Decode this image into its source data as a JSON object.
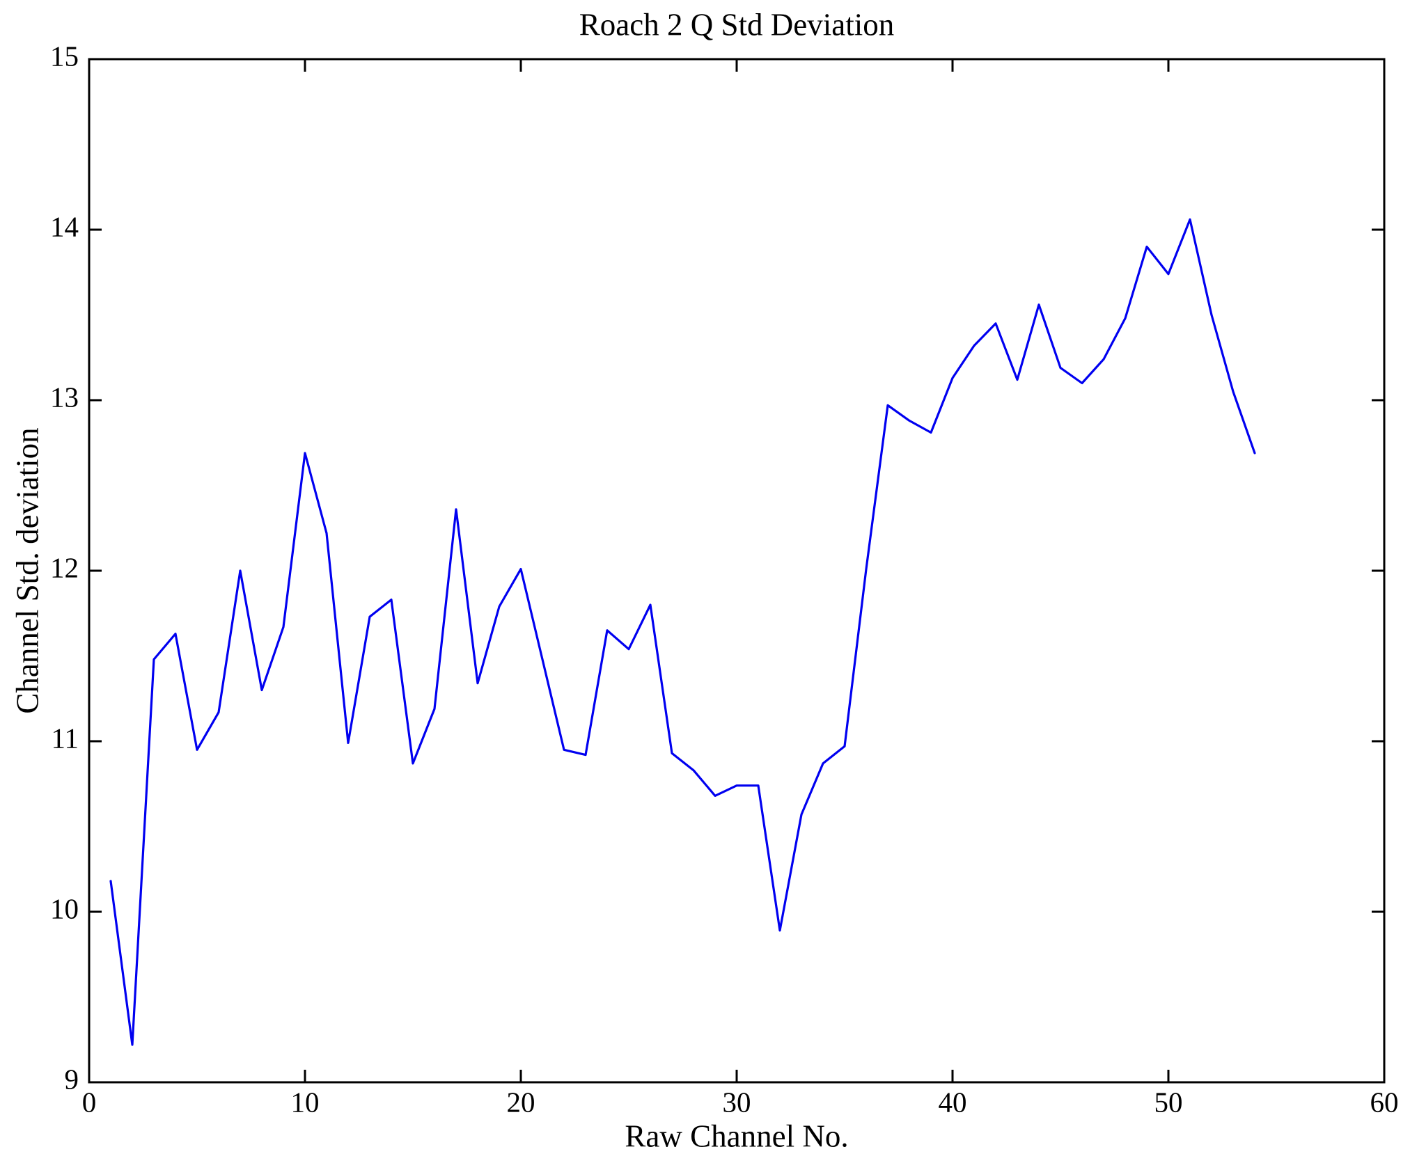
{
  "chart_data": {
    "type": "line",
    "title": "Roach 2 Q Std Deviation",
    "xlabel": "Raw Channel No.",
    "ylabel": "Channel Std. deviation",
    "x": [
      1,
      2,
      3,
      4,
      5,
      6,
      7,
      8,
      9,
      10,
      11,
      12,
      13,
      14,
      15,
      16,
      17,
      18,
      19,
      20,
      21,
      22,
      23,
      24,
      25,
      26,
      27,
      28,
      29,
      30,
      31,
      32,
      33,
      34,
      35,
      36,
      37,
      38,
      39,
      40,
      41,
      42,
      43,
      44,
      45,
      46,
      47,
      48,
      49,
      50,
      51,
      52,
      53,
      54
    ],
    "y": [
      10.18,
      9.22,
      11.48,
      11.63,
      10.95,
      11.17,
      12.0,
      11.3,
      11.67,
      12.69,
      12.22,
      10.99,
      11.73,
      11.83,
      10.87,
      11.19,
      12.36,
      11.34,
      11.79,
      12.01,
      11.48,
      10.95,
      10.92,
      11.65,
      11.54,
      11.8,
      10.93,
      10.83,
      10.68,
      10.74,
      10.74,
      9.89,
      10.57,
      10.87,
      10.97,
      12.01,
      12.97,
      12.88,
      12.81,
      13.13,
      13.32,
      13.45,
      13.12,
      13.56,
      13.19,
      13.1,
      13.24,
      13.48,
      13.9,
      13.74,
      14.06,
      13.5,
      13.05,
      12.69
    ],
    "xlim": [
      0,
      60
    ],
    "ylim": [
      9,
      15
    ],
    "xticks": [
      0,
      10,
      20,
      30,
      40,
      50,
      60
    ],
    "yticks": [
      9,
      10,
      11,
      12,
      13,
      14,
      15
    ],
    "line_color": "#0000f0",
    "axis_color": "#000000",
    "grid": false,
    "legend_position": "none"
  }
}
